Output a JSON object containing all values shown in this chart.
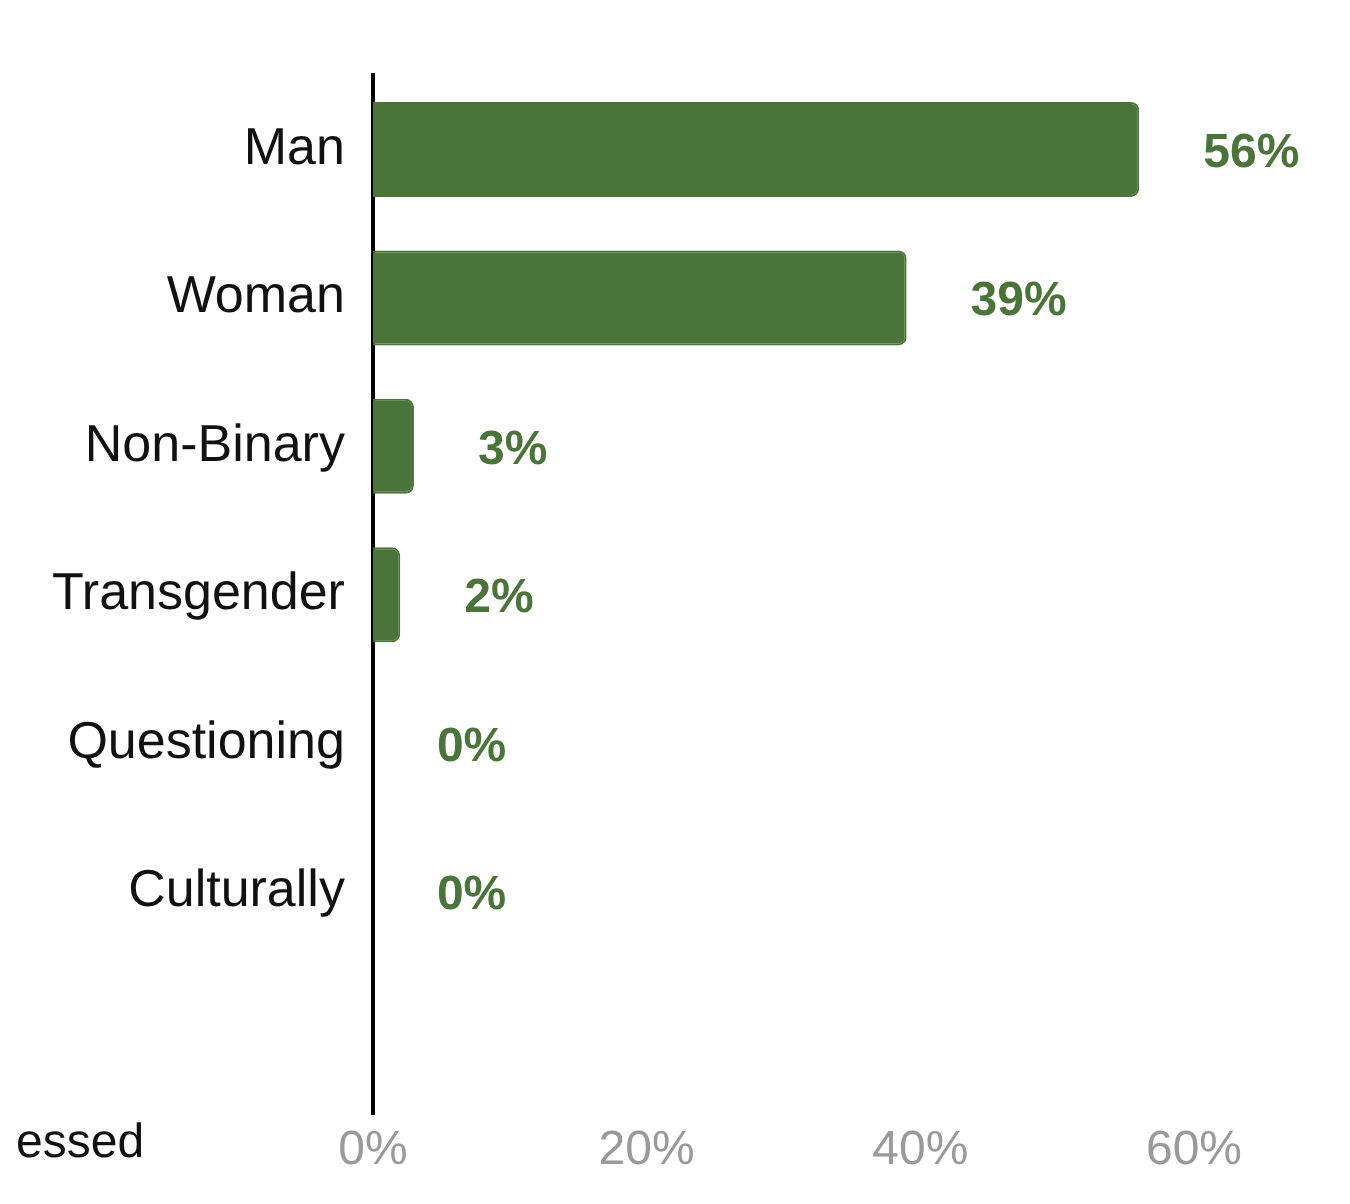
{
  "chart_data": {
    "type": "bar",
    "orientation": "horizontal",
    "categories": [
      "Man",
      "Woman",
      "Non-Binary",
      "Transgender",
      "Questioning",
      "Culturally",
      null
    ],
    "values": [
      56,
      39,
      3,
      2,
      0,
      0,
      null
    ],
    "color": "#4a7439",
    "value_labels": [
      "56%",
      "39%",
      "3%",
      "2%",
      "0%",
      "0%",
      null
    ],
    "xlim": [
      0,
      60
    ],
    "xticks": [
      {
        "value": 0,
        "label": "0%"
      },
      {
        "value": 20,
        "label": "20%"
      },
      {
        "value": 40,
        "label": "40%"
      },
      {
        "value": 60,
        "label": "60%"
      }
    ],
    "grid": false,
    "annotations": [
      "essed"
    ]
  }
}
